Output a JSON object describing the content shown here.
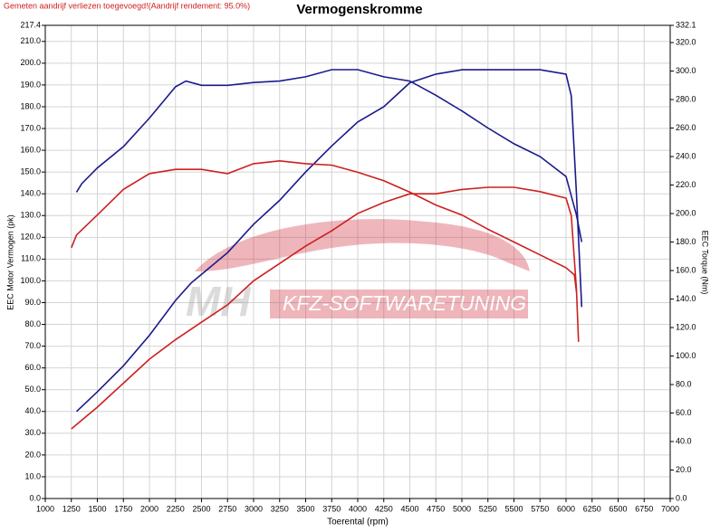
{
  "chart_data": {
    "type": "line",
    "title": "Vermogenskromme",
    "subtitle": "Gemeten aandrijf verliezen toegevoegd!(Aandrijf rendement: 95.0%)",
    "xlabel": "Toerental (rpm)",
    "ylabel": "EEC Motor Vermogen (pk)",
    "y2label": "EEC Torque (Nm)",
    "watermark": [
      "MH",
      "KFZ-SOFTWARETUNING"
    ],
    "grid": true,
    "xlim": [
      1000,
      7000
    ],
    "xticks": [
      1000,
      1250,
      1500,
      1750,
      2000,
      2250,
      2500,
      2750,
      3000,
      3250,
      3500,
      3750,
      4000,
      4250,
      4500,
      4750,
      5000,
      5250,
      5500,
      5750,
      6000,
      6250,
      6500,
      6750,
      7000
    ],
    "ylim": [
      0,
      217.4
    ],
    "yticks": [
      {
        "value": 0,
        "label": "0.0"
      },
      {
        "value": 10,
        "label": "10.0"
      },
      {
        "value": 20,
        "label": "20.0"
      },
      {
        "value": 30,
        "label": "30.0"
      },
      {
        "value": 40,
        "label": "40.0"
      },
      {
        "value": 50,
        "label": "50.0"
      },
      {
        "value": 60,
        "label": "60.0"
      },
      {
        "value": 70,
        "label": "70.0"
      },
      {
        "value": 80,
        "label": "80.0"
      },
      {
        "value": 90,
        "label": "90.0"
      },
      {
        "value": 100,
        "label": "100.0"
      },
      {
        "value": 110,
        "label": "110.0"
      },
      {
        "value": 120,
        "label": "120.0"
      },
      {
        "value": 130,
        "label": "130.0"
      },
      {
        "value": 140,
        "label": "140.0"
      },
      {
        "value": 150,
        "label": "150.0"
      },
      {
        "value": 160,
        "label": "160.0"
      },
      {
        "value": 170,
        "label": "170.0"
      },
      {
        "value": 180,
        "label": "180.0"
      },
      {
        "value": 190,
        "label": "190.0"
      },
      {
        "value": 200,
        "label": "200.0"
      },
      {
        "value": 210,
        "label": "210.0"
      },
      217.4
    ],
    "y2lim": [
      0,
      332.1
    ],
    "y2ticks": [
      {
        "value": 0,
        "label": "0.0"
      },
      {
        "value": 20,
        "label": "20.0"
      },
      {
        "value": 40,
        "label": "40.0"
      },
      {
        "value": 60,
        "label": "60.0"
      },
      {
        "value": 80,
        "label": "80.0"
      },
      {
        "value": 100,
        "label": "100.0"
      },
      {
        "value": 120,
        "label": "120.0"
      },
      {
        "value": 140,
        "label": "140.0"
      },
      {
        "value": 160,
        "label": "160.0"
      },
      {
        "value": 180,
        "label": "180.0"
      },
      {
        "value": 200,
        "label": "200.0"
      },
      {
        "value": 220,
        "label": "220.0"
      },
      {
        "value": 240,
        "label": "240.0"
      },
      {
        "value": 260,
        "label": "260.0"
      },
      {
        "value": 280,
        "label": "280.0"
      },
      {
        "value": 300,
        "label": "300.0"
      },
      {
        "value": 320,
        "label": "320.0"
      },
      332.1
    ],
    "series": [
      {
        "color": "#1a1a8c",
        "x": [
          1300,
          1500,
          1750,
          2000,
          2250,
          2400,
          2500,
          2750,
          3000,
          3250,
          3500,
          3750,
          4000,
          4250,
          4500,
          4750,
          5000,
          5250,
          5500,
          5750,
          6000,
          6050,
          6100,
          6150
        ],
        "values": [
          40,
          49,
          61,
          75,
          91,
          99,
          103,
          113,
          126,
          137,
          150,
          162,
          173,
          180,
          191,
          195,
          197,
          197,
          197,
          197,
          195,
          185,
          140,
          88
        ]
      },
      {
        "color": "#cc2020",
        "x": [
          1250,
          1500,
          1750,
          2000,
          2250,
          2500,
          2750,
          3000,
          3250,
          3500,
          3750,
          4000,
          4250,
          4500,
          4750,
          5000,
          5250,
          5500,
          5750,
          6000,
          6050,
          6100,
          6120
        ],
        "values": [
          32,
          42,
          53,
          64,
          73,
          81,
          89,
          100,
          108,
          116,
          123,
          131,
          136,
          140,
          140,
          142,
          143,
          143,
          141,
          138,
          130,
          96,
          72
        ]
      },
      {
        "color": "#1a1a8c",
        "axis": "y2",
        "x": [
          1300,
          1350,
          1500,
          1750,
          2000,
          2250,
          2350,
          2500,
          2750,
          3000,
          3250,
          3500,
          3750,
          4000,
          4250,
          4500,
          4750,
          5000,
          5250,
          5500,
          5750,
          6000,
          6100,
          6150
        ],
        "values": [
          215,
          221,
          232,
          247,
          267,
          289,
          293,
          290,
          290,
          292,
          293,
          296,
          301,
          301,
          296,
          293,
          283,
          272,
          260,
          249,
          240,
          226,
          199,
          180
        ]
      },
      {
        "color": "#cc2020",
        "axis": "y2",
        "x": [
          1250,
          1300,
          1500,
          1750,
          2000,
          2250,
          2500,
          2750,
          3000,
          3250,
          3500,
          3750,
          4000,
          4250,
          4500,
          4750,
          5000,
          5250,
          5500,
          5750,
          6000,
          6080,
          6100
        ],
        "values": [
          176,
          185,
          199,
          217,
          228,
          231,
          231,
          228,
          235,
          237,
          235,
          234,
          229,
          223,
          215,
          206,
          199,
          189,
          180,
          171,
          162,
          157,
          145
        ]
      }
    ]
  }
}
